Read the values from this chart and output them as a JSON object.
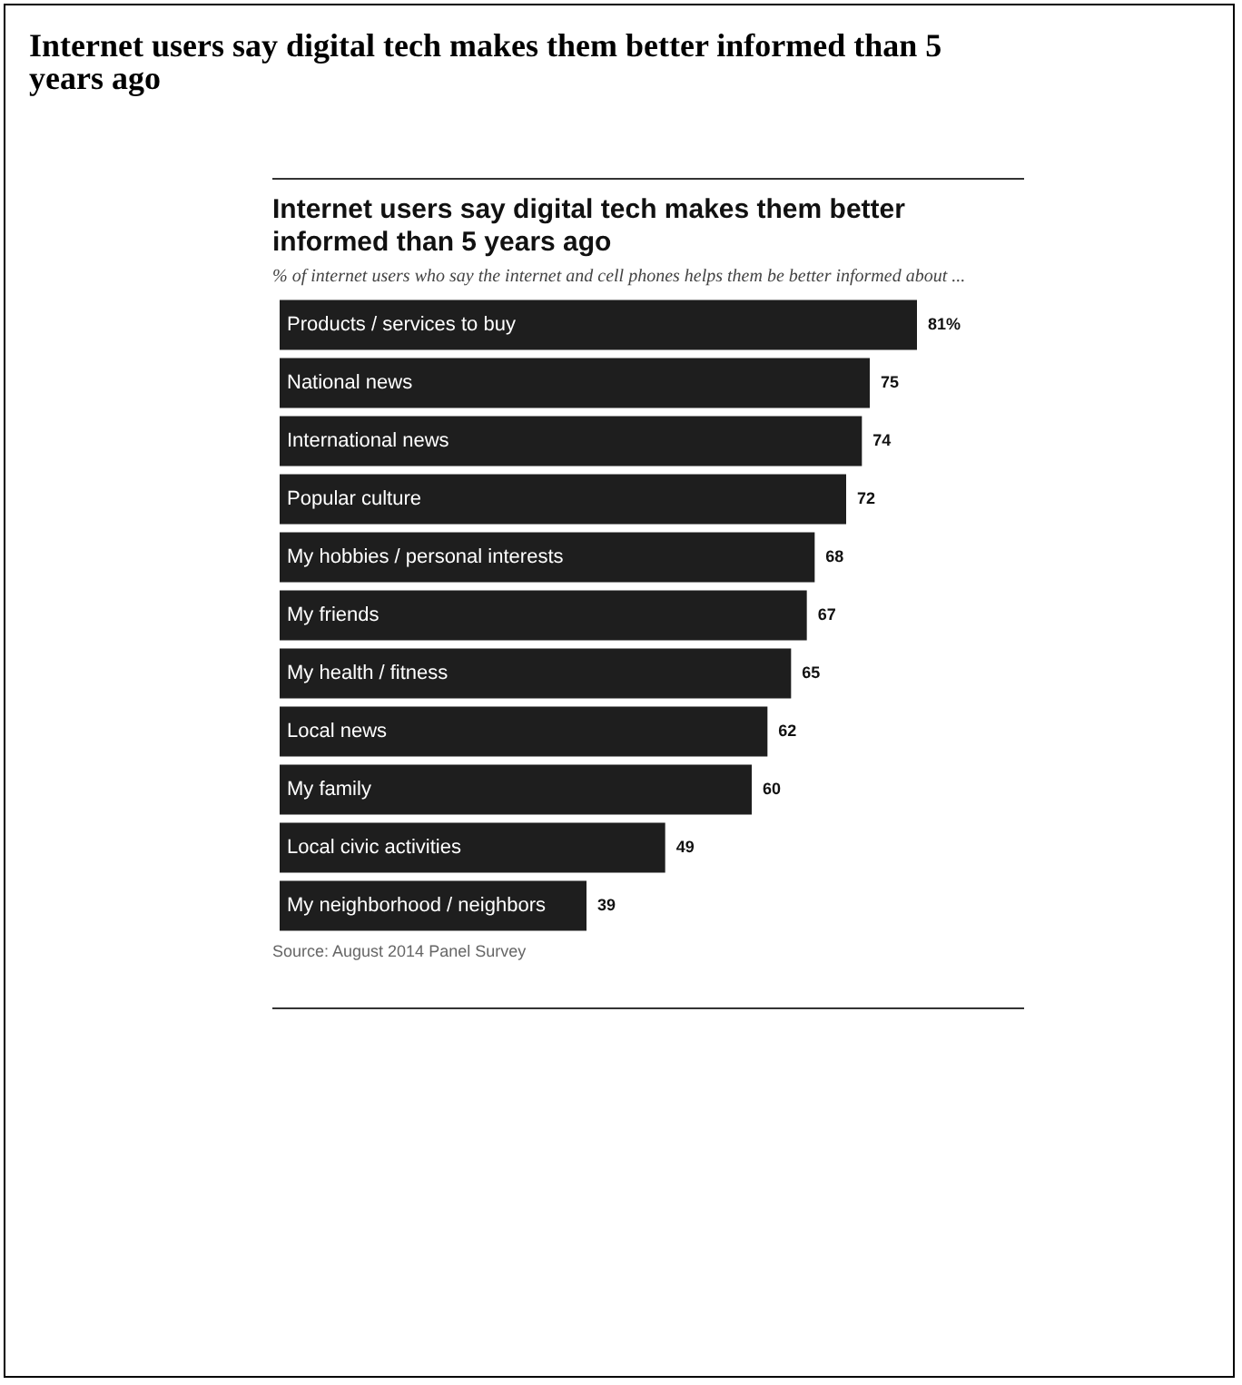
{
  "chart_data": {
    "type": "bar",
    "orientation": "horizontal",
    "title": "Internet users say digital tech makes them better informed than 5 years ago",
    "subtitle": "% of internet users who say the internet and cell phones helps them be better informed about ...",
    "categories": [
      "Products / services to buy",
      "National news",
      "International news",
      "Popular culture",
      "My hobbies / personal interests",
      "My friends",
      "My health / fitness",
      "Local news",
      "My family",
      "Local civic activities",
      "My neighborhood / neighbors"
    ],
    "values": [
      81,
      75,
      74,
      72,
      68,
      67,
      65,
      62,
      60,
      49,
      39
    ],
    "value_labels": [
      "81%",
      "75",
      "74",
      "72",
      "68",
      "67",
      "65",
      "62",
      "60",
      "49",
      "39"
    ],
    "color": "#1e1e1e",
    "annotations": [
      "Internet users say digital tech makes them better informed than 5 years ago",
      "Source: August 2014 Panel Survey"
    ],
    "legend": false
  }
}
